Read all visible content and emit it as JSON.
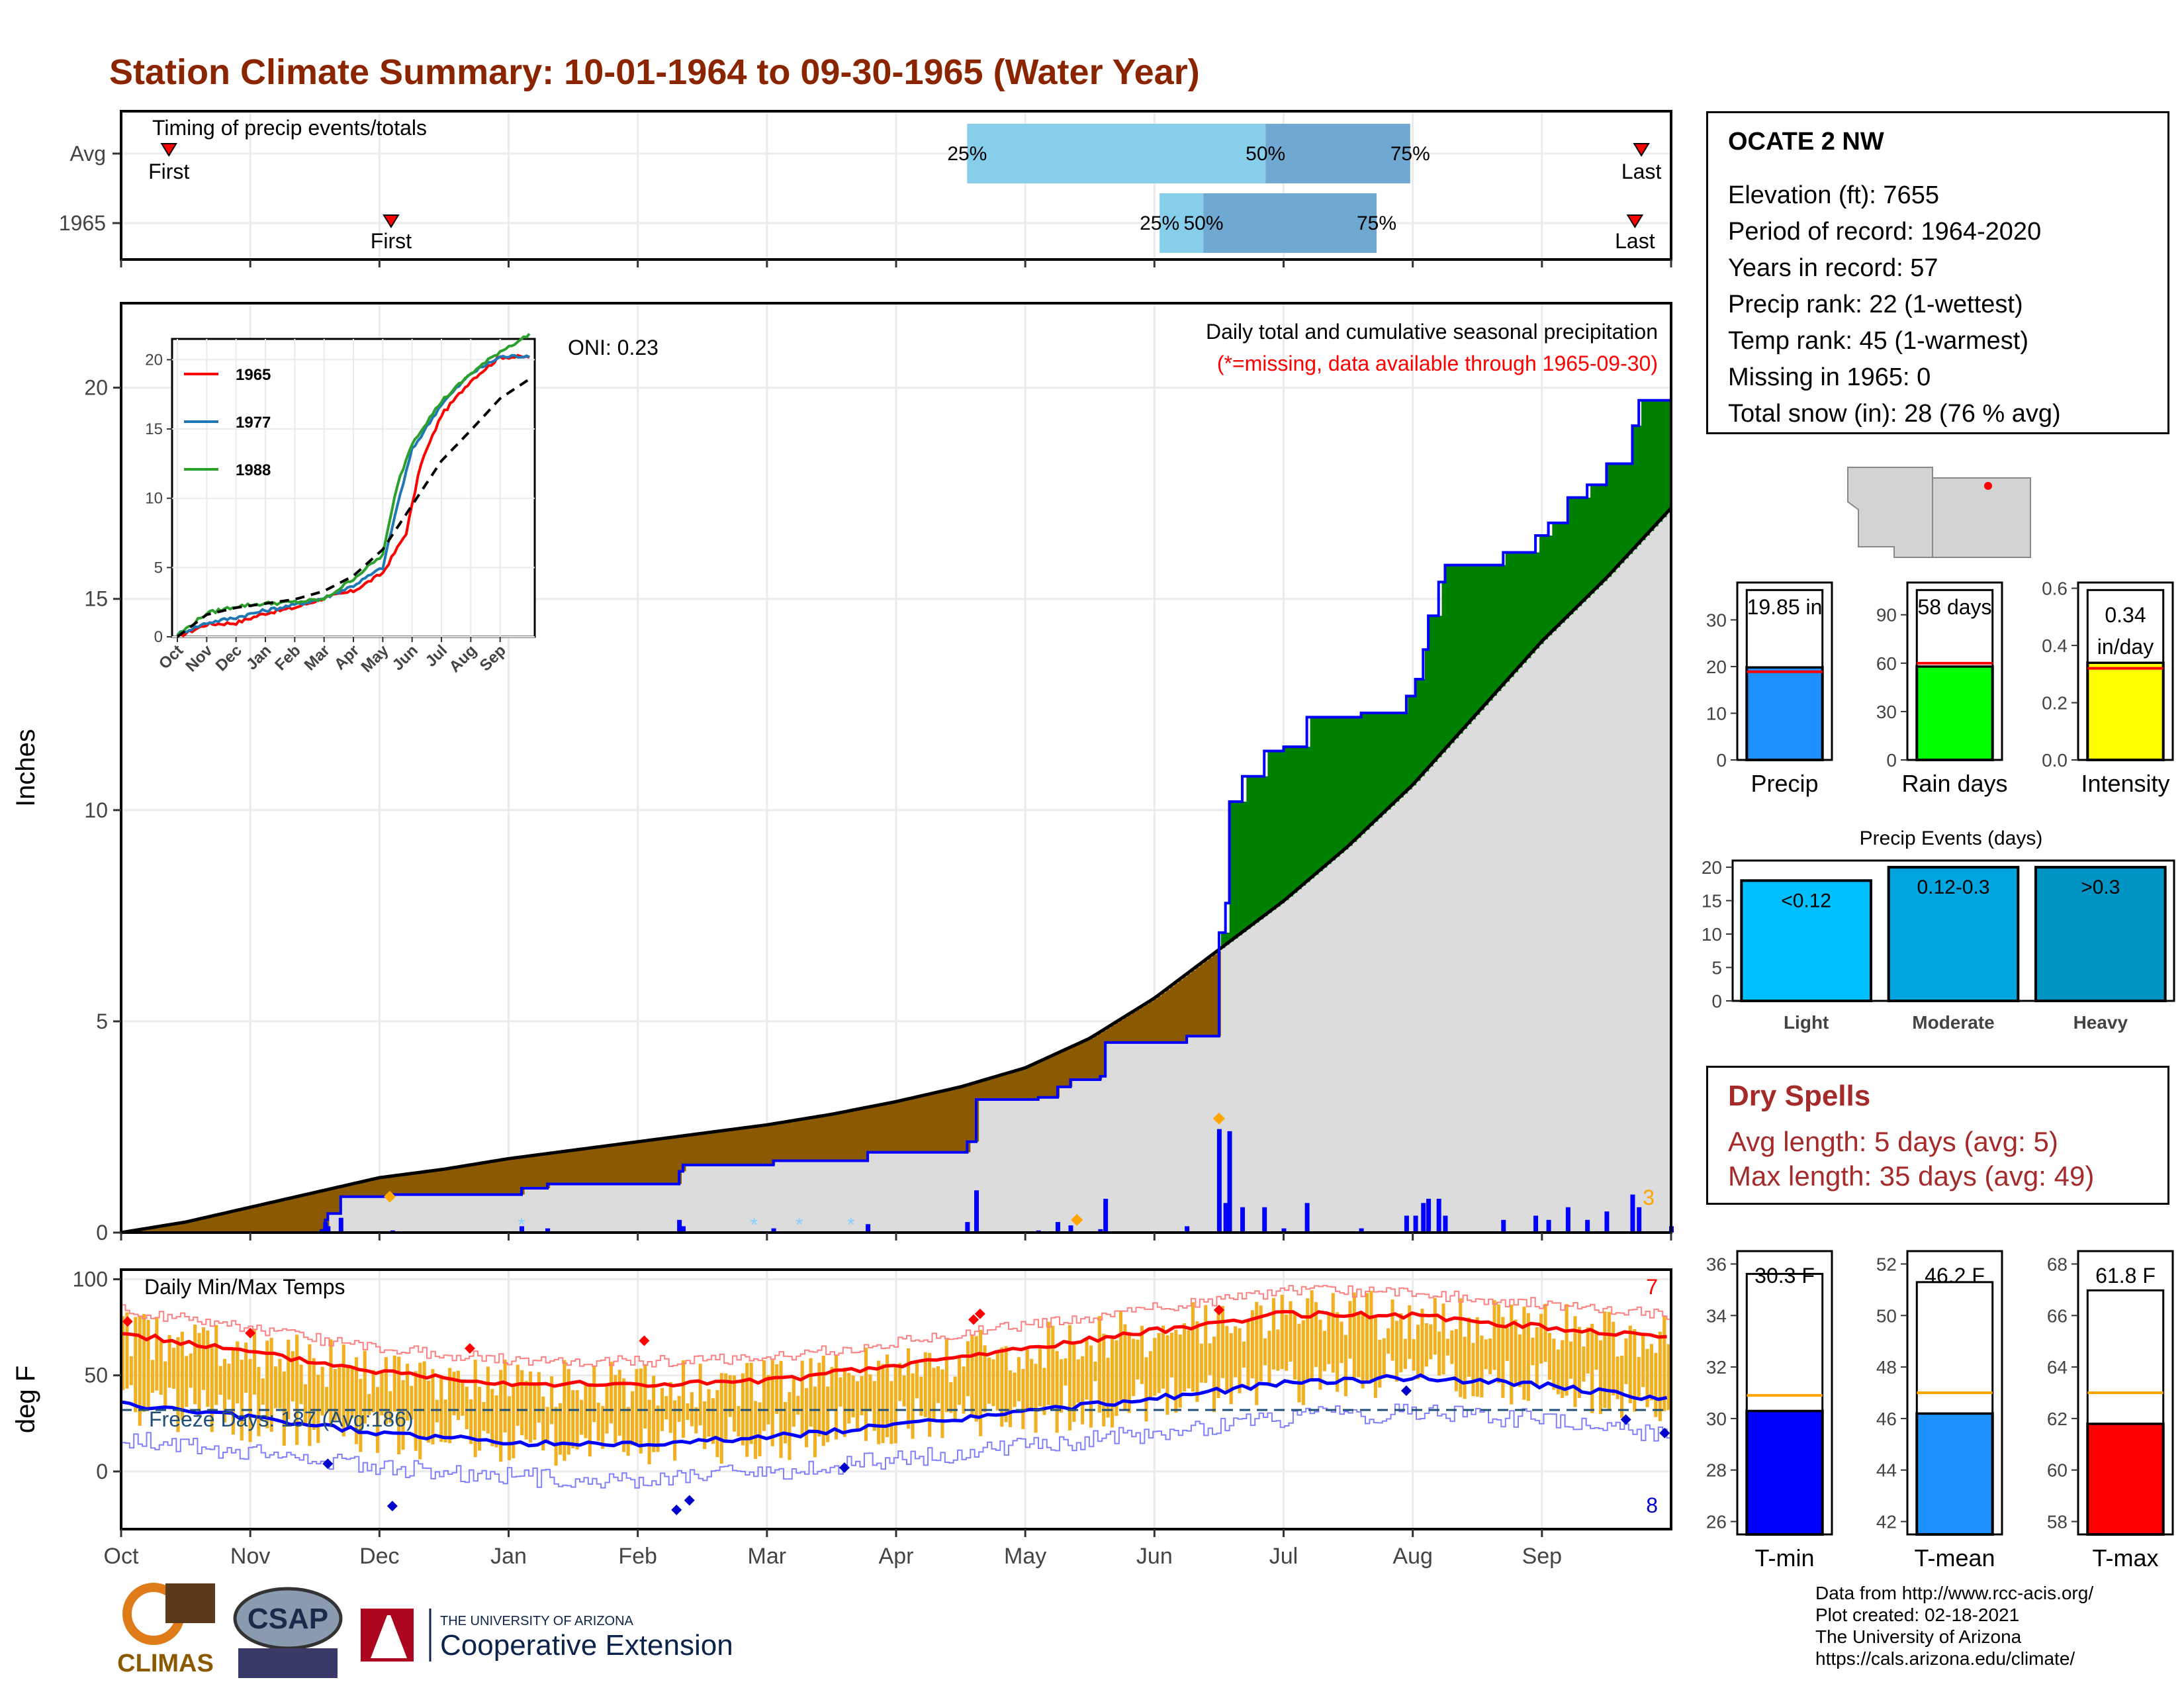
{
  "title": "Station Climate Summary: 10-01-1964 to 09-30-1965 (Water Year)",
  "colors": {
    "title": "#8b2500",
    "cum_obs": "#0000ff",
    "above_avg_fill": "#008000",
    "below_avg_fill": "#8b5a00",
    "avg_fill": "#dcdcdc",
    "tmax": "#ff0000",
    "tmin": "#0000ff",
    "temp_bar": "#f0b020",
    "event_light": "#00bfff",
    "event_moderate": "#00a5e0",
    "event_heavy": "#0094c4",
    "precip_bar": "#1e90ff",
    "rain_bar": "#00ff00",
    "intensity_bar": "#ffff00",
    "dry_spells": "#a52a2a"
  },
  "timing": {
    "label": "Timing of precip events/totals",
    "rows": [
      {
        "name": "Avg",
        "first_label": "First",
        "last_label": "Last",
        "first_month": 0.37,
        "last_month": 11.77,
        "q25": 6.55,
        "q50": 8.86,
        "q75": 9.98
      },
      {
        "name": "1965",
        "first_label": "First",
        "last_label": "Last",
        "first_month": 2.09,
        "last_month": 11.72,
        "q25": 8.04,
        "q50": 8.38,
        "q75": 9.72
      }
    ],
    "pct_labels": [
      "25%",
      "50%",
      "75%"
    ]
  },
  "station": {
    "name": "OCATE 2 NW",
    "lines": [
      "Elevation (ft): 7655",
      "Period of record: 1964-2020",
      "Years in record: 57",
      "Precip rank: 22 (1-wettest)",
      "Temp rank: 45 (1-warmest)",
      "Missing in 1965: 0",
      "Total snow (in): 28 (76 % avg)"
    ]
  },
  "precip_panel": {
    "oni": "ONI: 0.23",
    "caption": "Daily total and cumulative seasonal precipitation",
    "missing_note": "(*=missing, data available through 1965-09-30)",
    "corner_count": "3",
    "ylabel": "Inches",
    "yticks": [
      "0",
      "5",
      "10",
      "15",
      "20"
    ]
  },
  "inset": {
    "legend": [
      "1965",
      "1977",
      "1988"
    ],
    "colors": [
      "#ff0000",
      "#1f77b4",
      "#2ca02c"
    ],
    "yticks": [
      "0",
      "5",
      "10",
      "15",
      "20"
    ],
    "xticks": [
      "Oct",
      "Nov",
      "Dec",
      "Jan",
      "Feb",
      "Mar",
      "Apr",
      "May",
      "Jun",
      "Jul",
      "Aug",
      "Sep"
    ]
  },
  "temp_panel": {
    "label": "Daily Min/Max Temps",
    "freeze": "Freeze Days: 187 (Avg:186)",
    "ylabel": "deg F",
    "yticks": [
      "0",
      "50",
      "100"
    ],
    "count_max": "7",
    "count_min": "8"
  },
  "months": [
    "Oct",
    "Nov",
    "Dec",
    "Jan",
    "Feb",
    "Mar",
    "Apr",
    "May",
    "Jun",
    "Jul",
    "Aug",
    "Sep"
  ],
  "small_bars": [
    {
      "label": "Precip",
      "value_text": "19.85 in",
      "yticks": [
        "0",
        "10",
        "20",
        "30"
      ]
    },
    {
      "label": "Rain days",
      "value_text": "58 days",
      "yticks": [
        "0",
        "30",
        "60",
        "90"
      ]
    },
    {
      "label": "Intensity",
      "value_text": "0.34 in/day",
      "yticks": [
        "0.0",
        "0.2",
        "0.4",
        "0.6"
      ]
    }
  ],
  "events": {
    "title": "Precip Events (days)",
    "yticks": [
      "0",
      "5",
      "10",
      "15",
      "20"
    ],
    "categories": [
      "Light",
      "Moderate",
      "Heavy"
    ],
    "labels": [
      "<0.12",
      "0.12-0.3",
      ">0.3"
    ]
  },
  "dry_spells": {
    "title": "Dry Spells",
    "avg_line": "Avg length: 5 days (avg: 5)",
    "max_line": "Max length: 35 days (avg: 49)"
  },
  "temp_bars": [
    {
      "label": "T-min",
      "value_text": "30.3 F",
      "yticks": [
        "26",
        "28",
        "30",
        "32",
        "34",
        "36"
      ]
    },
    {
      "label": "T-mean",
      "value_text": "46.2 F",
      "yticks": [
        "42",
        "44",
        "46",
        "48",
        "50",
        "52"
      ]
    },
    {
      "label": "T-max",
      "value_text": "61.8 F",
      "yticks": [
        "58",
        "60",
        "62",
        "64",
        "66",
        "68"
      ]
    }
  ],
  "credits": [
    "Data from http://www.rcc-acis.org/",
    "Plot created: 02-18-2021",
    "The University of Arizona",
    "https://cals.arizona.edu/climate/"
  ],
  "logos": {
    "climas": "CLIMAS",
    "csap": "CSAP",
    "ua_small": "THE UNIVERSITY OF ARIZONA",
    "ua_big": "Cooperative Extension"
  },
  "chart_data": [
    {
      "type": "area",
      "title": "Daily total and cumulative seasonal precipitation",
      "ylabel": "Inches",
      "ylim": [
        0,
        22
      ],
      "x_unit": "month index from Oct 1",
      "cumulative_observed": [
        [
          0,
          0
        ],
        [
          1.05,
          0
        ],
        [
          1.55,
          0.05
        ],
        [
          1.58,
          0.3
        ],
        [
          1.6,
          0.45
        ],
        [
          1.7,
          0.8
        ],
        [
          1.7,
          0.85
        ],
        [
          2.08,
          0.85
        ],
        [
          2.1,
          0.9
        ],
        [
          3.1,
          1.05
        ],
        [
          3.3,
          1.15
        ],
        [
          4.32,
          1.45
        ],
        [
          4.35,
          1.6
        ],
        [
          5.05,
          1.7
        ],
        [
          5.78,
          1.9
        ],
        [
          6.55,
          2.15
        ],
        [
          6.62,
          3.15
        ],
        [
          7.1,
          3.2
        ],
        [
          7.25,
          3.45
        ],
        [
          7.35,
          3.62
        ],
        [
          7.58,
          3.7
        ],
        [
          7.62,
          4.5
        ],
        [
          8.25,
          4.65
        ],
        [
          8.5,
          7.1
        ],
        [
          8.55,
          7.8
        ],
        [
          8.58,
          10.2
        ],
        [
          8.68,
          10.8
        ],
        [
          8.85,
          11.4
        ],
        [
          9.0,
          11.5
        ],
        [
          9.18,
          12.2
        ],
        [
          9.6,
          12.3
        ],
        [
          9.95,
          12.7
        ],
        [
          10.02,
          13.1
        ],
        [
          10.08,
          13.8
        ],
        [
          10.12,
          14.6
        ],
        [
          10.2,
          15.4
        ],
        [
          10.25,
          15.8
        ],
        [
          10.7,
          16.1
        ],
        [
          10.95,
          16.5
        ],
        [
          11.05,
          16.8
        ],
        [
          11.2,
          17.4
        ],
        [
          11.35,
          17.7
        ],
        [
          11.5,
          18.2
        ],
        [
          11.7,
          19.1
        ],
        [
          11.75,
          19.7
        ],
        [
          12,
          19.85
        ]
      ],
      "average_cumulative": [
        [
          0,
          0
        ],
        [
          0.5,
          0.25
        ],
        [
          1,
          0.6
        ],
        [
          1.5,
          0.95
        ],
        [
          2,
          1.3
        ],
        [
          2.5,
          1.5
        ],
        [
          3,
          1.75
        ],
        [
          3.5,
          1.95
        ],
        [
          4,
          2.15
        ],
        [
          4.5,
          2.35
        ],
        [
          5,
          2.55
        ],
        [
          5.5,
          2.8
        ],
        [
          6,
          3.1
        ],
        [
          6.5,
          3.45
        ],
        [
          7,
          3.9
        ],
        [
          7.5,
          4.6
        ],
        [
          8,
          5.55
        ],
        [
          8.5,
          6.7
        ],
        [
          9,
          7.85
        ],
        [
          9.5,
          9.15
        ],
        [
          10,
          10.6
        ],
        [
          10.5,
          12.3
        ],
        [
          11,
          14.0
        ],
        [
          11.5,
          15.5
        ],
        [
          12,
          17.15
        ]
      ],
      "daily_precip_max_in": 2.7,
      "max_marker": {
        "x": 8.5,
        "y": 2.7
      }
    },
    {
      "type": "line",
      "title": "Daily Min/Max Temps",
      "ylabel": "deg F",
      "ylim": [
        -30,
        105
      ],
      "x_unit": "month index from Oct 1",
      "avg_tmax": [
        [
          0,
          72
        ],
        [
          1,
          62
        ],
        [
          2,
          52
        ],
        [
          3,
          46
        ],
        [
          4,
          45
        ],
        [
          5,
          47
        ],
        [
          6,
          55
        ],
        [
          7,
          64
        ],
        [
          8,
          73
        ],
        [
          9,
          82
        ],
        [
          10,
          81
        ],
        [
          11,
          75
        ],
        [
          12,
          70
        ]
      ],
      "avg_tmin": [
        [
          0,
          35
        ],
        [
          1,
          28
        ],
        [
          2,
          20
        ],
        [
          3,
          15
        ],
        [
          4,
          14
        ],
        [
          5,
          18
        ],
        [
          6,
          24
        ],
        [
          7,
          31
        ],
        [
          8,
          38
        ],
        [
          9,
          46
        ],
        [
          10,
          49
        ],
        [
          11,
          45
        ],
        [
          12,
          37
        ]
      ],
      "freeze_line": 32
    },
    {
      "type": "line",
      "title": "",
      "series": [
        {
          "name": "1965",
          "points": [
            [
              0,
              0
            ],
            [
              1,
              0.9
            ],
            [
              2,
              1.0
            ],
            [
              3,
              1.7
            ],
            [
              4,
              2.1
            ],
            [
              5,
              2.8
            ],
            [
              6,
              3.3
            ],
            [
              7,
              4.6
            ],
            [
              7.8,
              7.5
            ],
            [
              8.3,
              12.5
            ],
            [
              9,
              16
            ],
            [
              10,
              18.5
            ],
            [
              11,
              20.2
            ],
            [
              12,
              20.2
            ]
          ]
        },
        {
          "name": "1977",
          "points": [
            [
              0,
              0.2
            ],
            [
              1,
              1.0
            ],
            [
              2,
              1.4
            ],
            [
              3,
              1.9
            ],
            [
              4,
              2.3
            ],
            [
              5,
              2.8
            ],
            [
              6,
              3.7
            ],
            [
              7,
              5.0
            ],
            [
              7.5,
              9.5
            ],
            [
              8,
              13.5
            ],
            [
              9,
              16.8
            ],
            [
              10,
              19
            ],
            [
              11,
              20.2
            ],
            [
              12,
              20.3
            ]
          ]
        },
        {
          "name": "1988",
          "points": [
            [
              0,
              0.1
            ],
            [
              1,
              1.7
            ],
            [
              2,
              2.2
            ],
            [
              3,
              2.4
            ],
            [
              4,
              2.5
            ],
            [
              5,
              2.7
            ],
            [
              6,
              4.2
            ],
            [
              7,
              5.9
            ],
            [
              7.5,
              11
            ],
            [
              8,
              14
            ],
            [
              9,
              17
            ],
            [
              10,
              19
            ],
            [
              11,
              20.6
            ],
            [
              12,
              21.8
            ]
          ]
        },
        {
          "name": "avg",
          "points": [
            [
              0,
              0
            ],
            [
              1,
              1.6
            ],
            [
              2,
              2.1
            ],
            [
              3,
              2.4
            ],
            [
              4,
              2.7
            ],
            [
              5,
              3.3
            ],
            [
              6,
              4.4
            ],
            [
              7,
              6.3
            ],
            [
              8,
              9.5
            ],
            [
              9,
              12.7
            ],
            [
              10,
              14.9
            ],
            [
              11,
              17.2
            ],
            [
              12,
              18.6
            ]
          ]
        }
      ],
      "ylim": [
        0,
        21.5
      ]
    },
    {
      "type": "bar",
      "title": "",
      "categories": [
        "Precip"
      ],
      "values": [
        19.85
      ],
      "ylim": [
        0,
        38
      ],
      "avg": 18.9
    },
    {
      "type": "bar",
      "title": "",
      "categories": [
        "Rain days"
      ],
      "values": [
        58
      ],
      "ylim": [
        0,
        110
      ],
      "avg": 60
    },
    {
      "type": "bar",
      "title": "",
      "categories": [
        "Intensity"
      ],
      "values": [
        0.34
      ],
      "ylim": [
        0,
        0.62
      ],
      "avg": 0.32
    },
    {
      "type": "bar",
      "title": "Precip Events (days)",
      "categories": [
        "Light",
        "Moderate",
        "Heavy"
      ],
      "values": [
        18,
        20,
        20
      ],
      "ylim": [
        0,
        21
      ]
    },
    {
      "type": "bar",
      "title": "",
      "categories": [
        "T-min"
      ],
      "values": [
        30.3
      ],
      "ylim": [
        25.5,
        36.5
      ],
      "avg": 30.9
    },
    {
      "type": "bar",
      "title": "",
      "categories": [
        "T-mean"
      ],
      "values": [
        46.2
      ],
      "ylim": [
        41.5,
        52.5
      ],
      "avg": 47.0
    },
    {
      "type": "bar",
      "title": "",
      "categories": [
        "T-max"
      ],
      "values": [
        61.8
      ],
      "ylim": [
        57.5,
        68.5
      ],
      "avg": 63.0
    }
  ]
}
